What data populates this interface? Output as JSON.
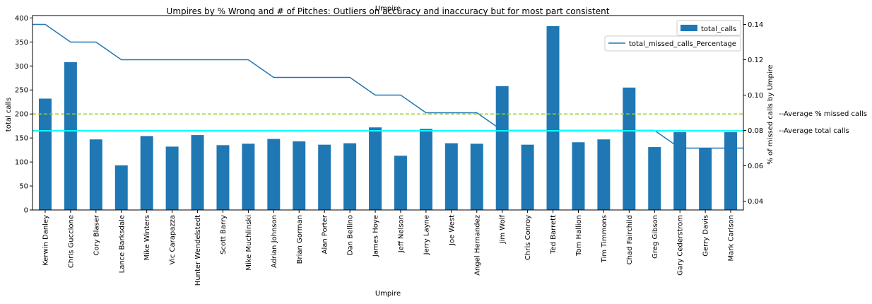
{
  "chart_data": {
    "type": "bar",
    "title": "Umpires by % Wrong and # of Pitches: Outliers on accuracy and inaccuracy but for most part consistent",
    "top_label": "Umpire",
    "xlabel": "Umpire",
    "ylabel": "total calls",
    "y2label": "% of missed calls by Umpire",
    "ylim": [
      0,
      405
    ],
    "y2lim": [
      0.035,
      0.145
    ],
    "yticks": [
      "0",
      "50",
      "100",
      "150",
      "200",
      "250",
      "300",
      "350",
      "400"
    ],
    "y2ticks": [
      "0.04",
      "0.06",
      "0.08",
      "0.10",
      "0.12",
      "0.14"
    ],
    "categories": [
      "Kerwin Danley",
      "Chris Guccione",
      "Cory Blaser",
      "Lance Barksdale",
      "Mike Winters",
      "Vic Carapazza",
      "Hunter Wendelstedt",
      "Scott Barry",
      "Mike Muchlinski",
      "Adrian Johnson",
      "Brian Gorman",
      "Alan Porter",
      "Dan Bellino",
      "James Hoye",
      "Jeff Nelson",
      "Jerry Layne",
      "Joe West",
      "Angel Hernandez",
      "Jim Wolf",
      "Chris Conroy",
      "Ted Barrett",
      "Tom Hallion",
      "Tim Timmons",
      "Chad Fairchild",
      "Greg Gibson",
      "Gary Cederstrom",
      "Gerry Davis",
      "Mark Carlson"
    ],
    "series": [
      {
        "name": "total_calls",
        "kind": "bar",
        "axis": "left",
        "color": "#1f77b4",
        "values": [
          232,
          308,
          147,
          93,
          154,
          132,
          156,
          135,
          138,
          148,
          143,
          136,
          139,
          172,
          113,
          169,
          139,
          138,
          258,
          136,
          383,
          141,
          147,
          255,
          131,
          162,
          129,
          162
        ]
      },
      {
        "name": "total_missed_calls_Percentage",
        "kind": "line",
        "axis": "right",
        "color": "#1f77b4",
        "values": [
          0.14,
          0.13,
          0.13,
          0.12,
          0.12,
          0.12,
          0.12,
          0.12,
          0.12,
          0.11,
          0.11,
          0.11,
          0.11,
          0.1,
          0.1,
          0.09,
          0.09,
          0.09,
          0.08,
          0.08,
          0.08,
          0.08,
          0.08,
          0.08,
          0.08,
          0.07,
          0.07,
          0.07
        ]
      }
    ],
    "reference_lines": [
      {
        "label": "--Average % missed calls",
        "value": 200,
        "axis": "left",
        "color": "#9acd32",
        "dashed": true
      },
      {
        "label": "--Average total calls",
        "value": 165,
        "axis": "left",
        "color": "#00ffff",
        "dashed": false
      }
    ],
    "legend_placement": "top-right",
    "grid": false
  }
}
